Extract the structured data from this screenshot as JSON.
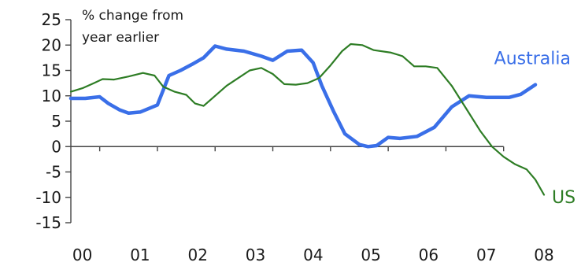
{
  "chart_data": {
    "type": "line",
    "unit_label": [
      "% change from",
      "year earlier"
    ],
    "ylim": [
      -15,
      25
    ],
    "yticks": [
      25,
      20,
      15,
      10,
      5,
      0,
      -5,
      -10,
      -15
    ],
    "xlim": [
      0,
      8.5
    ],
    "x_ticks": [
      0.5,
      1.5,
      2.5,
      3.5,
      4.5,
      5.5,
      6.5,
      7.5
    ],
    "x_tick_labels": [
      "00",
      "01",
      "02",
      "03",
      "04",
      "05",
      "06",
      "07",
      "08"
    ],
    "x_label_positions": [
      0.5,
      1.5,
      2.5,
      3.5,
      4.5,
      5.5,
      6.5,
      7.5,
      8.5
    ],
    "grid": false,
    "legend": "inline labels at line ends",
    "series": [
      {
        "name": "Australia",
        "color": "#3a6fe8",
        "label_anchor": [
          8.05,
          17.5
        ],
        "points": [
          [
            0.0,
            9.5
          ],
          [
            0.25,
            9.5
          ],
          [
            0.5,
            9.8
          ],
          [
            0.65,
            8.5
          ],
          [
            0.85,
            7.2
          ],
          [
            1.0,
            6.6
          ],
          [
            1.2,
            6.8
          ],
          [
            1.5,
            8.2
          ],
          [
            1.7,
            14.0
          ],
          [
            1.9,
            15.0
          ],
          [
            2.1,
            16.2
          ],
          [
            2.3,
            17.5
          ],
          [
            2.5,
            19.8
          ],
          [
            2.7,
            19.2
          ],
          [
            3.0,
            18.8
          ],
          [
            3.3,
            17.8
          ],
          [
            3.5,
            17.0
          ],
          [
            3.75,
            18.8
          ],
          [
            4.0,
            19.0
          ],
          [
            4.2,
            16.5
          ],
          [
            4.35,
            12.0
          ],
          [
            4.55,
            7.0
          ],
          [
            4.75,
            2.5
          ],
          [
            5.0,
            0.4
          ],
          [
            5.15,
            0.0
          ],
          [
            5.3,
            0.2
          ],
          [
            5.5,
            1.8
          ],
          [
            5.7,
            1.6
          ],
          [
            6.0,
            2.0
          ],
          [
            6.3,
            3.8
          ],
          [
            6.6,
            7.8
          ],
          [
            6.9,
            10.0
          ],
          [
            7.2,
            9.7
          ],
          [
            7.6,
            9.7
          ],
          [
            7.8,
            10.3
          ],
          [
            8.05,
            12.2
          ]
        ]
      },
      {
        "name": "US",
        "color": "#2e7d25",
        "label_anchor": [
          8.2,
          -10.0
        ],
        "points": [
          [
            0.0,
            10.8
          ],
          [
            0.2,
            11.5
          ],
          [
            0.4,
            12.5
          ],
          [
            0.55,
            13.3
          ],
          [
            0.75,
            13.2
          ],
          [
            1.0,
            13.8
          ],
          [
            1.25,
            14.5
          ],
          [
            1.45,
            14.0
          ],
          [
            1.6,
            11.8
          ],
          [
            1.8,
            10.8
          ],
          [
            2.0,
            10.2
          ],
          [
            2.15,
            8.5
          ],
          [
            2.3,
            8.0
          ],
          [
            2.5,
            10.0
          ],
          [
            2.7,
            12.0
          ],
          [
            2.9,
            13.5
          ],
          [
            3.1,
            15.0
          ],
          [
            3.3,
            15.5
          ],
          [
            3.5,
            14.3
          ],
          [
            3.7,
            12.3
          ],
          [
            3.9,
            12.2
          ],
          [
            4.1,
            12.5
          ],
          [
            4.3,
            13.5
          ],
          [
            4.5,
            16.0
          ],
          [
            4.7,
            18.8
          ],
          [
            4.85,
            20.2
          ],
          [
            5.05,
            20.0
          ],
          [
            5.25,
            19.0
          ],
          [
            5.55,
            18.5
          ],
          [
            5.75,
            17.8
          ],
          [
            5.95,
            15.8
          ],
          [
            6.15,
            15.8
          ],
          [
            6.35,
            15.5
          ],
          [
            6.6,
            12.0
          ],
          [
            6.85,
            7.5
          ],
          [
            7.1,
            3.0
          ],
          [
            7.3,
            0.0
          ],
          [
            7.5,
            -2.0
          ],
          [
            7.7,
            -3.5
          ],
          [
            7.9,
            -4.5
          ],
          [
            8.05,
            -6.5
          ],
          [
            8.2,
            -9.5
          ]
        ]
      }
    ]
  }
}
